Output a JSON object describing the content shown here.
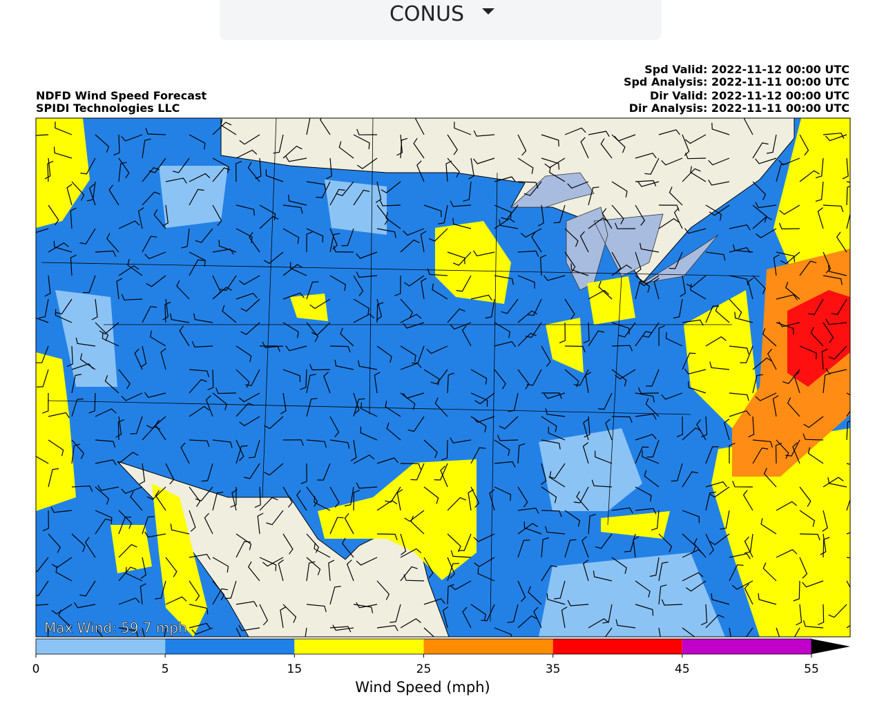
{
  "dropdown": {
    "label": "CONUS"
  },
  "header": {
    "title": "NDFD Wind Speed Forecast",
    "source": "SPIDI Technologies LLC",
    "times": [
      "Spd Valid: 2022-11-12 00:00 UTC",
      "Spd Analysis: 2022-11-11 00:00 UTC",
      "Dir Valid: 2022-11-12 00:00 UTC",
      "Dir Analysis: 2022-11-11 00:00 UTC"
    ]
  },
  "map": {
    "max_wind": "Max Wind: 59.7 mph"
  },
  "colorbar": {
    "label": "Wind Speed (mph)",
    "bins": [
      0,
      5,
      15,
      25,
      35,
      45,
      55
    ],
    "colors": [
      "#8cc3f5",
      "#1f80e8",
      "#ffff00",
      "#ff8c00",
      "#ff0000",
      "#c000c8"
    ],
    "extend_color": "#000000"
  }
}
